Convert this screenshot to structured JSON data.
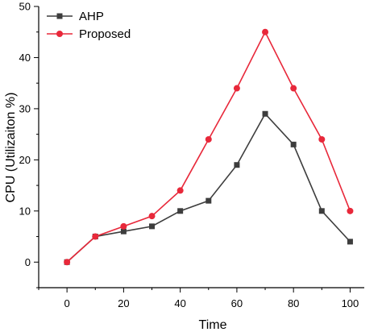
{
  "chart_data": {
    "type": "line",
    "title": "",
    "xlabel": "Time",
    "ylabel": "CPU (Utilizaiton %)",
    "xlim": [
      -10,
      105
    ],
    "ylim": [
      -5,
      50
    ],
    "xticks": [
      0,
      20,
      40,
      60,
      80,
      100
    ],
    "yticks": [
      0,
      10,
      20,
      30,
      40,
      50
    ],
    "grid": false,
    "legend_position": "top-left",
    "x": [
      0,
      10,
      20,
      30,
      40,
      50,
      60,
      70,
      80,
      90,
      100
    ],
    "series": [
      {
        "name": "AHP",
        "marker": "square",
        "color": "#3d3d3d",
        "values": [
          0,
          5,
          6,
          7,
          10,
          12,
          19,
          29,
          23,
          10,
          4
        ]
      },
      {
        "name": "Proposed",
        "marker": "circle",
        "color": "#e8283a",
        "values": [
          0,
          5,
          7,
          9,
          14,
          24,
          34,
          45,
          34,
          24,
          10
        ]
      }
    ]
  }
}
